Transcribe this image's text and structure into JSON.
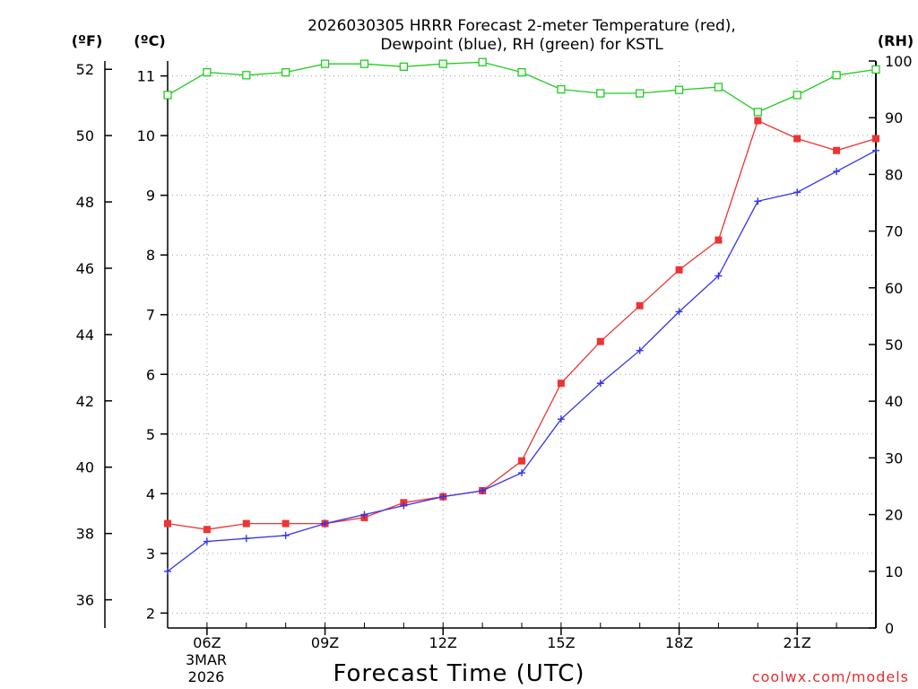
{
  "chart_data": {
    "type": "line",
    "title": "2026030305 HRRR Forecast 2-meter Temperature (red),",
    "subtitle": "Dewpoint (blue), RH (green) for KSTL",
    "xlabel": "Forecast Time (UTC)",
    "credit": "coolwx.com/models",
    "left_axis_units": "(ºF)",
    "celsius_axis_units": "(ºC)",
    "right_axis_units": "(RH)",
    "x_hours": [
      5,
      6,
      7,
      8,
      9,
      10,
      11,
      12,
      13,
      14,
      15,
      16,
      17,
      18,
      19,
      20,
      21,
      22,
      23
    ],
    "xlim": [
      5,
      23
    ],
    "x_tick_hours": [
      6,
      9,
      12,
      15,
      18,
      21
    ],
    "x_tick_labels": [
      "06Z",
      "09Z",
      "12Z",
      "15Z",
      "18Z",
      "21Z"
    ],
    "x_date_line1": "3MAR",
    "x_date_line2": "2026",
    "celsius_ylim": [
      1.75,
      11.25
    ],
    "celsius_ticks": [
      2,
      3,
      4,
      5,
      6,
      7,
      8,
      9,
      10,
      11
    ],
    "fahrenheit_ticks": [
      36,
      38,
      40,
      42,
      44,
      46,
      48,
      50,
      52
    ],
    "rh_ylim": [
      0,
      100
    ],
    "rh_ticks": [
      0,
      10,
      20,
      30,
      40,
      50,
      60,
      70,
      80,
      90,
      100
    ],
    "series": [
      {
        "name": "Temperature",
        "units": "°C",
        "color": "#ee3333",
        "axis": "celsius",
        "marker": "filled-square",
        "values": [
          3.5,
          3.4,
          3.5,
          3.5,
          3.5,
          3.6,
          3.85,
          3.95,
          4.05,
          4.55,
          5.85,
          6.55,
          7.15,
          7.75,
          8.25,
          10.25,
          9.95,
          9.75,
          9.95
        ]
      },
      {
        "name": "Dewpoint",
        "units": "°C",
        "color": "#3333ee",
        "axis": "celsius",
        "marker": "plus",
        "values": [
          2.7,
          3.2,
          3.25,
          3.3,
          3.5,
          3.65,
          3.8,
          3.95,
          4.05,
          4.35,
          5.25,
          5.85,
          6.4,
          7.05,
          7.65,
          8.9,
          9.05,
          9.4,
          9.75
        ]
      },
      {
        "name": "RH",
        "units": "%",
        "color": "#22cc22",
        "axis": "rh",
        "marker": "open-square",
        "values": [
          94,
          98,
          97.5,
          98,
          99.5,
          99.5,
          99,
          99.5,
          99.8,
          98,
          95,
          94.3,
          94.3,
          94.9,
          95.4,
          91,
          94,
          97.5,
          98.5
        ]
      }
    ]
  }
}
